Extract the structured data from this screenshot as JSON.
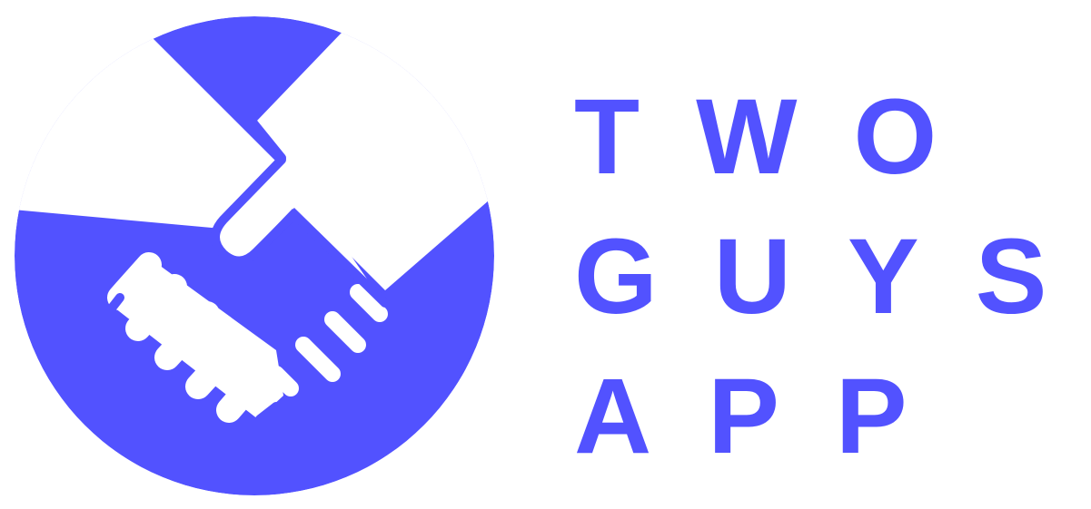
{
  "brand": {
    "name_lines": [
      "TWO",
      "GUYS",
      "APP"
    ],
    "color": "#5252ff",
    "background": "#ffffff",
    "icon": "handshake-icon"
  }
}
